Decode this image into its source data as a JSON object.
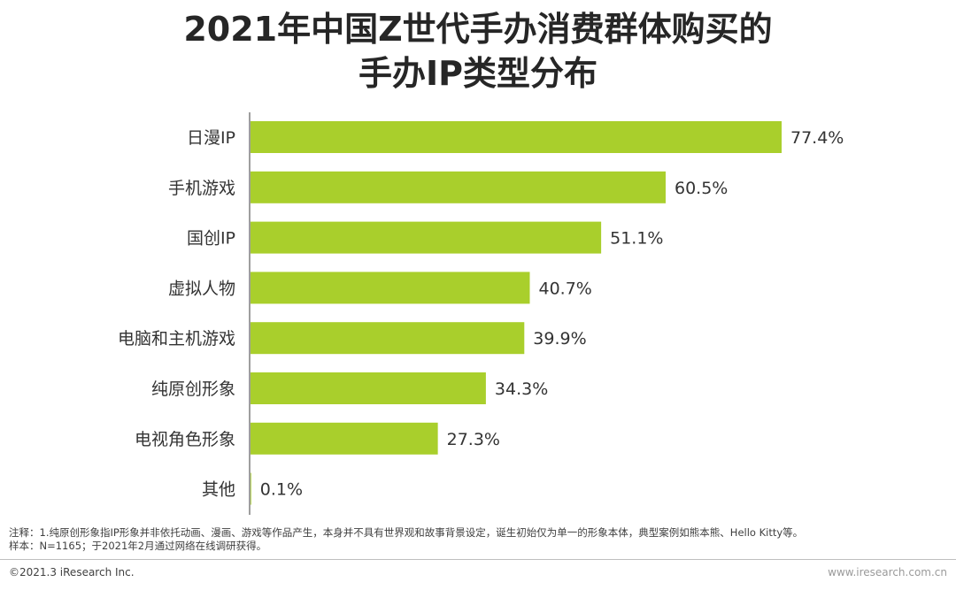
{
  "title_line1": "2021年中国Z世代手办消费群体购买的",
  "title_line2": "手办IP类型分布",
  "chart_data": {
    "type": "bar",
    "orientation": "horizontal",
    "categories": [
      "日漫IP",
      "手机游戏",
      "国创IP",
      "虚拟人物",
      "电脑和主机游戏",
      "纯原创形象",
      "电视角色形象",
      "其他"
    ],
    "values": [
      77.4,
      60.5,
      51.1,
      40.7,
      39.9,
      34.3,
      27.3,
      0.1
    ],
    "value_labels": [
      "77.4%",
      "60.5%",
      "51.1%",
      "40.7%",
      "39.9%",
      "34.3%",
      "27.3%",
      "0.1%"
    ],
    "bar_color": "#a9cf2c",
    "xlim": [
      0,
      100
    ],
    "grid": false,
    "legend": "none"
  },
  "notes": {
    "line1": "注释：1.纯原创形象指IP形象并非依托动画、漫画、游戏等作品产生，本身并不具有世界观和故事背景设定，诞生初始仅为单一的形象本体，典型案例如熊本熊、Hello Kitty等。",
    "line2": "样本：N=1165；于2021年2月通过网络在线调研获得。"
  },
  "footer": {
    "copyright": "©2021.3 iResearch Inc.",
    "website": "www.iresearch.com.cn"
  }
}
